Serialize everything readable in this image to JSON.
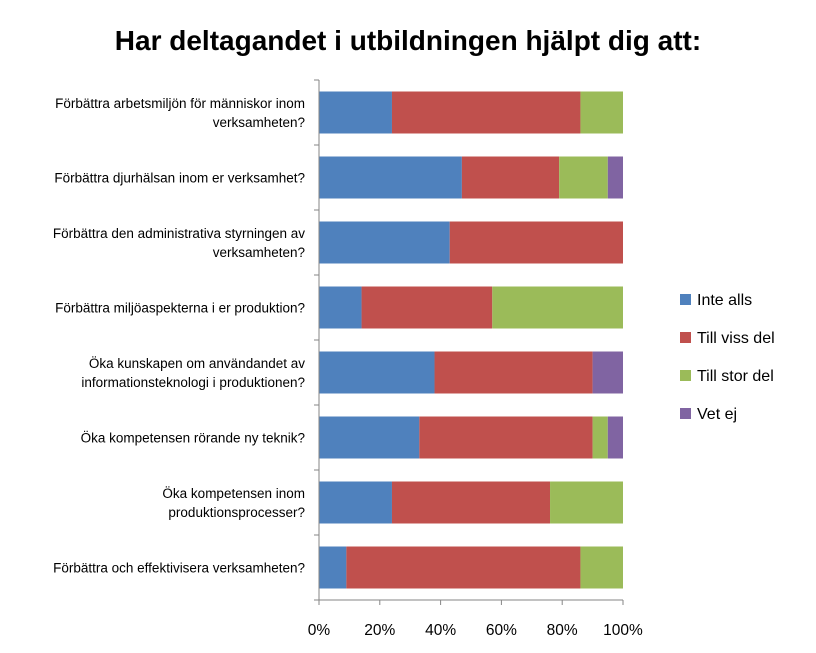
{
  "chart_data": {
    "type": "bar",
    "orientation": "horizontal",
    "stacked": "percent",
    "title": "Har deltagandet i utbildningen hjälpt dig att:",
    "categories": [
      [
        "Förbättra arbetsmiljön för människor inom",
        "verksamheten?"
      ],
      [
        "Förbättra djurhälsan inom er verksamhet?"
      ],
      [
        "Förbättra den administrativa styrningen av",
        "verksamheten?"
      ],
      [
        "Förbättra miljöaspekterna i er produktion?"
      ],
      [
        "Öka kunskapen om användandet av",
        "informationsteknologi i produktionen?"
      ],
      [
        "Öka kompetensen rörande ny teknik?"
      ],
      [
        "Öka kompetensen inom",
        "produktionsprocesser?"
      ],
      [
        "Förbättra och effektivisera verksamheten?"
      ]
    ],
    "series": [
      {
        "name": "Inte alls",
        "color": "#4F81BD",
        "values": [
          24,
          47,
          43,
          14,
          38,
          33,
          24,
          9
        ]
      },
      {
        "name": "Till viss del",
        "color": "#C0504D",
        "values": [
          62,
          32,
          57,
          43,
          52,
          57,
          52,
          77
        ]
      },
      {
        "name": "Till stor del",
        "color": "#9BBB59",
        "values": [
          14,
          16,
          0,
          43,
          0,
          5,
          24,
          14
        ]
      },
      {
        "name": "Vet ej",
        "color": "#8064A2",
        "values": [
          0,
          5,
          0,
          0,
          10,
          5,
          0,
          0
        ]
      }
    ],
    "xlim": [
      0,
      100
    ],
    "xticks": [
      "0%",
      "20%",
      "40%",
      "60%",
      "80%",
      "100%"
    ],
    "grid": false,
    "legend": "right"
  }
}
